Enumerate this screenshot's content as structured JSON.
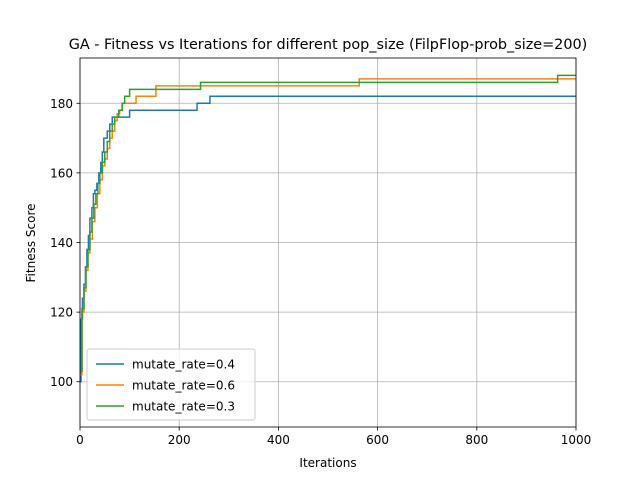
{
  "chart_data": {
    "type": "line",
    "title": "GA - Fitness vs Iterations for different pop_size (FilpFlop-prob_size=200)",
    "xlabel": "Iterations",
    "ylabel": "Fitness Score",
    "xlim": [
      0,
      1000
    ],
    "ylim": [
      87,
      193
    ],
    "xticks": [
      0,
      200,
      400,
      600,
      800,
      1000
    ],
    "yticks": [
      100,
      120,
      140,
      160,
      180
    ],
    "grid": true,
    "legend_position": "lower-left",
    "series": [
      {
        "name": "mutate_rate=0.4",
        "color": "#1f77b4",
        "step": true,
        "points": [
          [
            0,
            100
          ],
          [
            2,
            118
          ],
          [
            5,
            124
          ],
          [
            8,
            128
          ],
          [
            11,
            133
          ],
          [
            14,
            138
          ],
          [
            17,
            142
          ],
          [
            20,
            147
          ],
          [
            24,
            150
          ],
          [
            27,
            154
          ],
          [
            30,
            155
          ],
          [
            34,
            157
          ],
          [
            38,
            160
          ],
          [
            42,
            163
          ],
          [
            45,
            166
          ],
          [
            48,
            170
          ],
          [
            55,
            172
          ],
          [
            60,
            174
          ],
          [
            65,
            176
          ],
          [
            75,
            176
          ],
          [
            85,
            176
          ],
          [
            100,
            178
          ],
          [
            150,
            178
          ],
          [
            236,
            180
          ],
          [
            262,
            182
          ],
          [
            1000,
            182
          ]
        ]
      },
      {
        "name": "mutate_rate=0.6",
        "color": "#ff7f0e",
        "step": true,
        "points": [
          [
            0,
            102
          ],
          [
            4,
            120
          ],
          [
            8,
            126
          ],
          [
            12,
            132
          ],
          [
            16,
            137
          ],
          [
            20,
            141
          ],
          [
            25,
            146
          ],
          [
            30,
            150
          ],
          [
            35,
            154
          ],
          [
            40,
            158
          ],
          [
            45,
            162
          ],
          [
            50,
            164
          ],
          [
            55,
            167
          ],
          [
            60,
            170
          ],
          [
            65,
            172
          ],
          [
            70,
            175
          ],
          [
            75,
            177
          ],
          [
            80,
            178
          ],
          [
            85,
            180
          ],
          [
            110,
            180
          ],
          [
            113,
            182
          ],
          [
            150,
            182
          ],
          [
            153,
            185
          ],
          [
            240,
            185
          ],
          [
            243,
            185
          ],
          [
            560,
            185
          ],
          [
            563,
            187
          ],
          [
            1000,
            187
          ]
        ]
      },
      {
        "name": "mutate_rate=0.3",
        "color": "#2ca02c",
        "step": true,
        "points": [
          [
            0,
            103
          ],
          [
            4,
            121
          ],
          [
            8,
            127
          ],
          [
            12,
            133
          ],
          [
            16,
            138
          ],
          [
            20,
            143
          ],
          [
            24,
            147
          ],
          [
            28,
            151
          ],
          [
            32,
            154
          ],
          [
            36,
            157
          ],
          [
            40,
            160
          ],
          [
            45,
            163
          ],
          [
            50,
            166
          ],
          [
            55,
            169
          ],
          [
            60,
            172
          ],
          [
            65,
            174
          ],
          [
            70,
            176
          ],
          [
            78,
            178
          ],
          [
            85,
            180
          ],
          [
            90,
            182
          ],
          [
            100,
            184
          ],
          [
            240,
            184
          ],
          [
            243,
            186
          ],
          [
            960,
            186
          ],
          [
            963,
            188
          ],
          [
            1000,
            188
          ]
        ]
      }
    ]
  }
}
